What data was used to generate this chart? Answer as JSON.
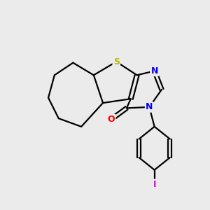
{
  "bg_color": "#ebebeb",
  "atom_colors": {
    "S": "#b8b800",
    "N": "#0000ff",
    "O": "#ff0000",
    "I": "#ee00ee",
    "C": "#000000"
  },
  "bond_color": "#000000",
  "bond_width": 1.6,
  "font_size_atom": 9,
  "figsize": [
    3.0,
    3.0
  ],
  "dpi": 100
}
